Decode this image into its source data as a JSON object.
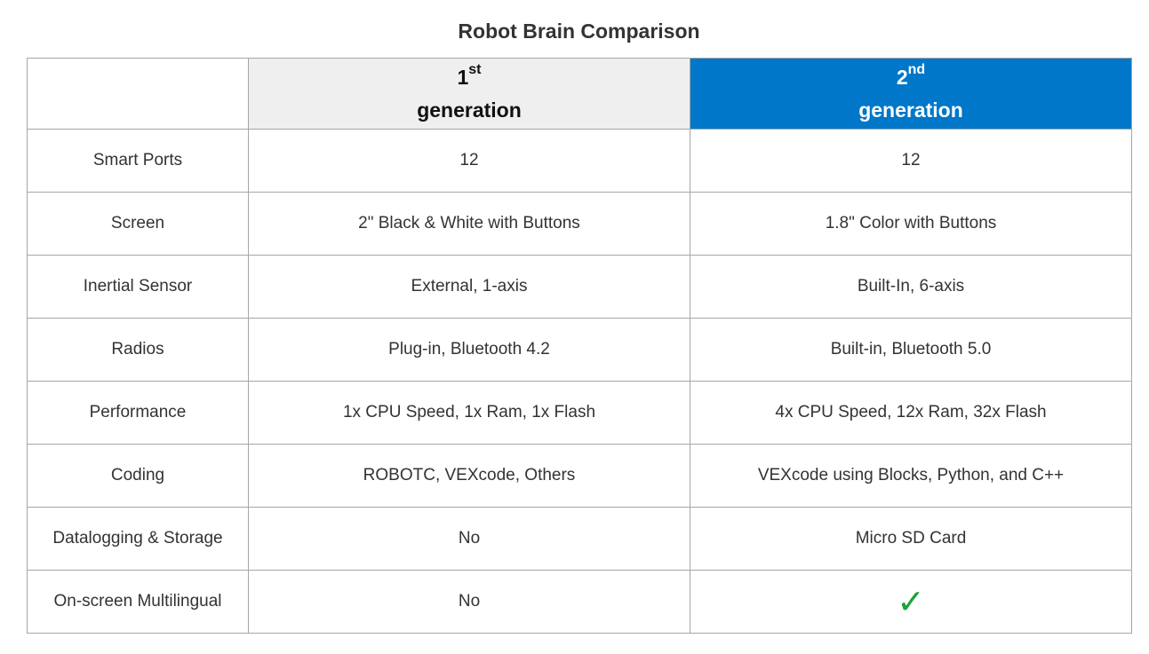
{
  "title": "Robot Brain Comparison",
  "header": {
    "gen1": {
      "number": "1",
      "suffix": "st",
      "word": "generation"
    },
    "gen2": {
      "number": "2",
      "suffix": "nd",
      "word": "generation"
    }
  },
  "colors": {
    "gen1_header_bg": "#efefef",
    "gen2_header_bg": "#0077c8",
    "check": "#1aa33a"
  },
  "rows": [
    {
      "feature": "Smart Ports",
      "gen1": "12",
      "gen2": "12"
    },
    {
      "feature": "Screen",
      "gen1": "2\" Black & White with Buttons",
      "gen2": "1.8\" Color with Buttons"
    },
    {
      "feature": "Inertial Sensor",
      "gen1": "External, 1-axis",
      "gen2": "Built-In, 6-axis"
    },
    {
      "feature": "Radios",
      "gen1": "Plug-in, Bluetooth 4.2",
      "gen2": "Built-in, Bluetooth 5.0"
    },
    {
      "feature": "Performance",
      "gen1": "1x CPU Speed, 1x Ram, 1x Flash",
      "gen2": "4x CPU Speed, 12x Ram, 32x Flash"
    },
    {
      "feature": "Coding",
      "gen1": "ROBOTC, VEXcode, Others",
      "gen2": "VEXcode using Blocks, Python, and C++"
    },
    {
      "feature": "Datalogging & Storage",
      "gen1": "No",
      "gen2": "Micro SD Card"
    },
    {
      "feature": "On-screen Multilingual",
      "gen1": "No",
      "gen2_icon": "check-icon",
      "gen2_glyph": "✓"
    }
  ]
}
